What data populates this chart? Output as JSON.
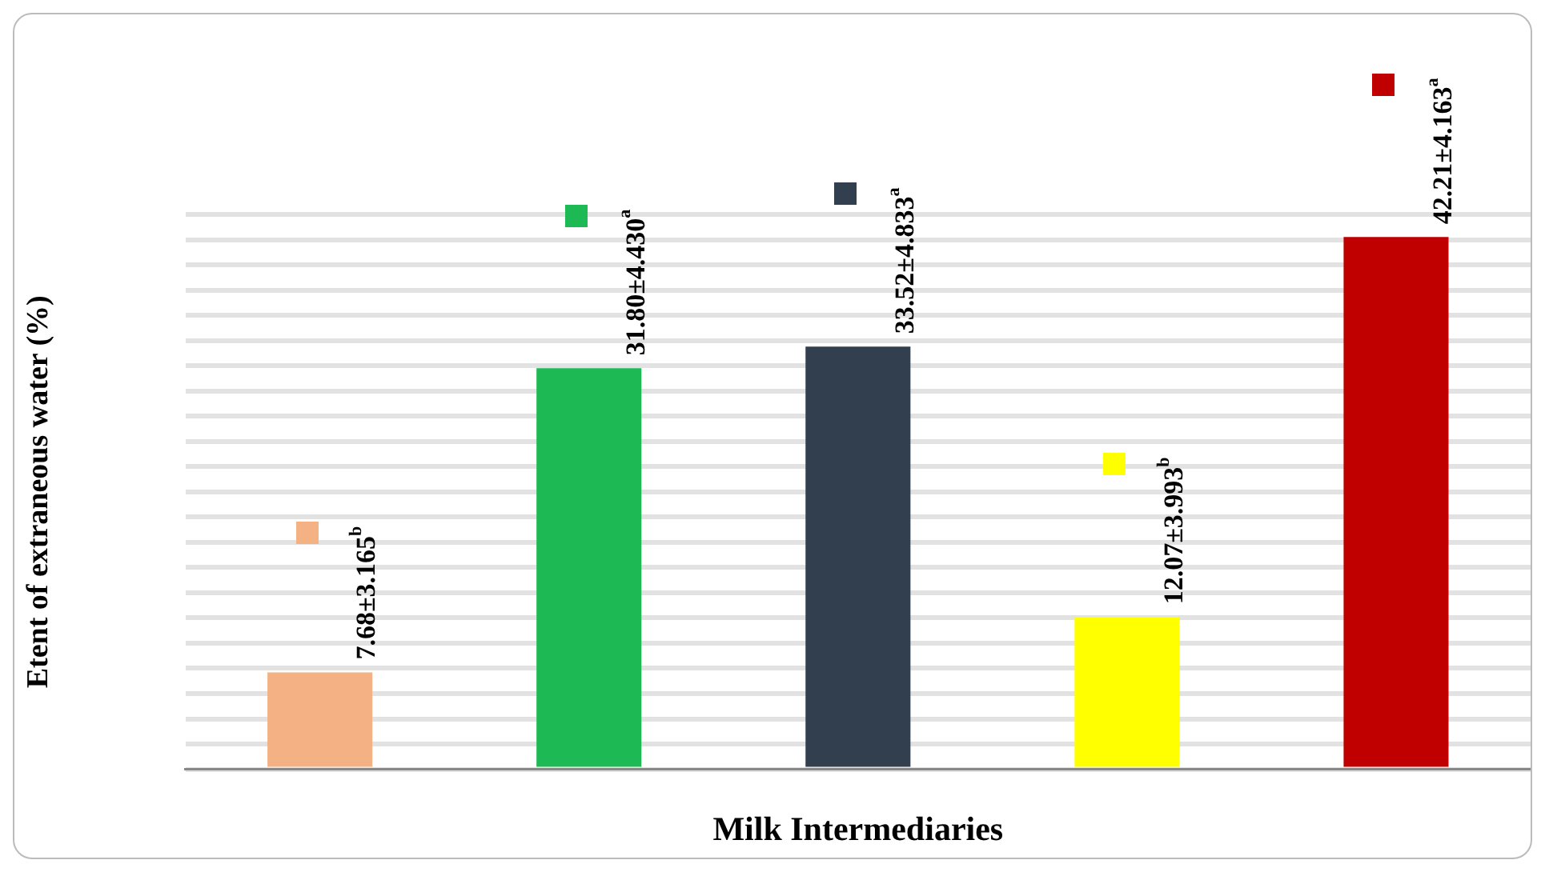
{
  "chart_data": {
    "type": "bar",
    "xlabel": "Milk Intermediaries",
    "ylabel": "Etent of extraneous water (%)",
    "categories": [
      null,
      null,
      null,
      null,
      null
    ],
    "values": [
      7.68,
      31.8,
      33.52,
      12.07,
      42.21
    ],
    "colors": [
      "#f4b183",
      "#1db954",
      "#323f4f",
      "#ffff00",
      "#c00000"
    ],
    "value_labels": [
      "7.68±3.165$^{b}$",
      "31.80±4.430$^{a}$",
      "33.52±4.833$^{a}$",
      "12.07±3.993$^{b}$",
      "42.21±4.163$^{a}$"
    ],
    "grid": "y",
    "tick_labels": false
  }
}
